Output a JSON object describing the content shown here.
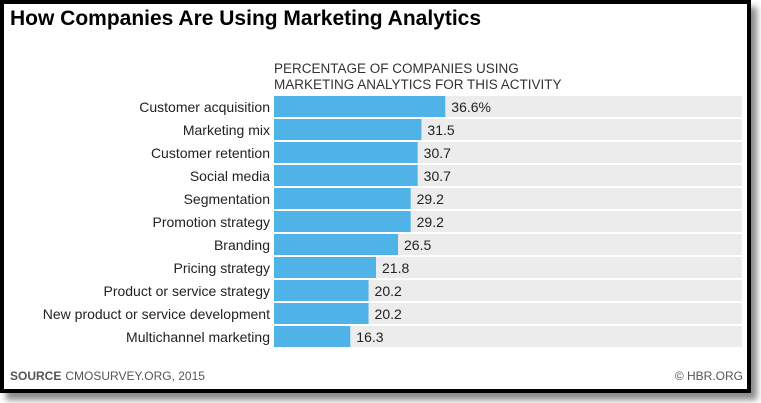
{
  "title": "How Companies Are Using Marketing Analytics",
  "footer": {
    "source_label": "SOURCE",
    "source_text": "CMOSURVEY.ORG, 2015",
    "credit": "© HBR.ORG"
  },
  "colors": {
    "bar": "#4fb3e8",
    "track": "#ececec"
  },
  "chart_data": {
    "type": "bar",
    "orientation": "horizontal",
    "title": "How Companies Are Using Marketing Analytics",
    "subtitle_lines": [
      "PERCENTAGE OF COMPANIES USING",
      "MARKETING ANALYTICS FOR THIS ACTIVITY"
    ],
    "categories": [
      "Customer acquisition",
      "Marketing mix",
      "Customer retention",
      "Social media",
      "Segmentation",
      "Promotion strategy",
      "Branding",
      "Pricing strategy",
      "Product or service strategy",
      "New product or service development",
      "Multichannel marketing"
    ],
    "values": [
      36.6,
      31.5,
      30.7,
      30.7,
      29.2,
      29.2,
      26.5,
      21.8,
      20.2,
      20.2,
      16.3
    ],
    "value_labels": [
      "36.6%",
      "31.5",
      "30.7",
      "30.7",
      "29.2",
      "29.2",
      "26.5",
      "21.8",
      "20.2",
      "20.2",
      "16.3"
    ],
    "xlabel": "",
    "ylabel": "",
    "xlim": [
      0,
      100
    ],
    "grid": false,
    "legend": "none"
  }
}
